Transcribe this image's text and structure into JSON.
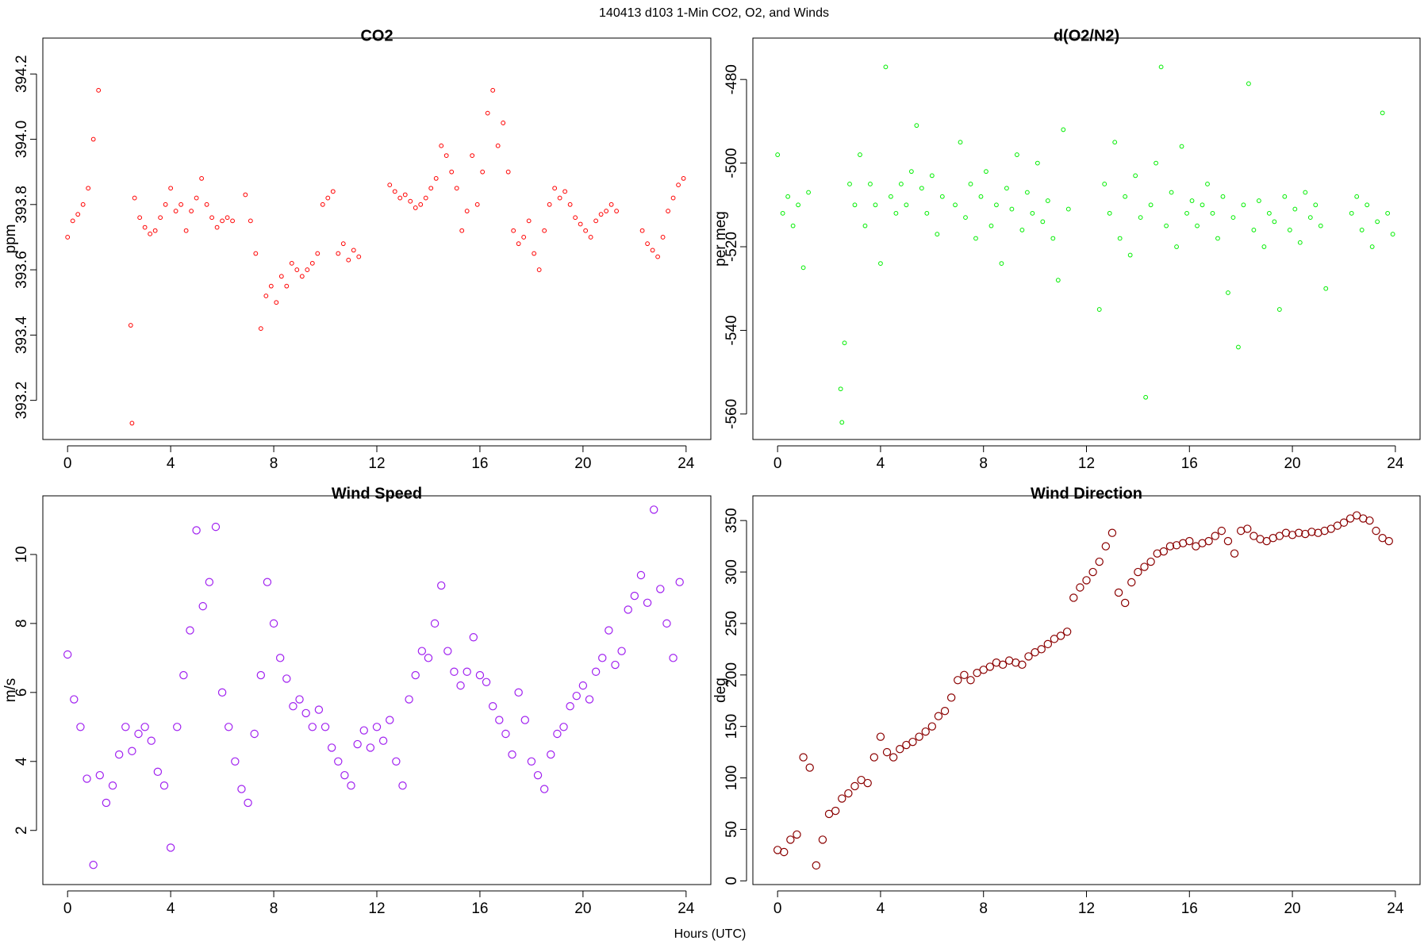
{
  "title": "140413   d103   1-Min CO2, O2, and Winds",
  "xlabel": "Hours (UTC)",
  "chart_data": [
    {
      "type": "scatter",
      "title": "CO2",
      "ylabel": "ppm",
      "color": "#ff0000",
      "xlim": [
        -0.96,
        24.96
      ],
      "xticks": [
        0,
        4,
        8,
        12,
        16,
        20,
        24
      ],
      "ylim": [
        393.08,
        394.31
      ],
      "yticks": [
        393.2,
        393.4,
        393.6,
        393.8,
        {
          "value": 394,
          "label": "394.0"
        },
        394.2
      ],
      "x": [
        0,
        0.2,
        0.4,
        0.6,
        0.8,
        1.0,
        1.2,
        2.45,
        2.5,
        2.6,
        2.8,
        3.0,
        3.2,
        3.4,
        3.6,
        3.8,
        4.0,
        4.2,
        4.4,
        4.6,
        4.8,
        5.0,
        5.2,
        5.4,
        5.6,
        5.8,
        6.0,
        6.2,
        6.4,
        6.9,
        7.1,
        7.3,
        7.5,
        7.7,
        7.9,
        8.1,
        8.3,
        8.5,
        8.7,
        8.9,
        9.1,
        9.3,
        9.5,
        9.7,
        9.9,
        10.1,
        10.3,
        10.5,
        10.7,
        10.9,
        11.1,
        11.3,
        12.5,
        12.7,
        12.9,
        13.1,
        13.3,
        13.5,
        13.7,
        13.9,
        14.1,
        14.3,
        14.5,
        14.7,
        14.9,
        15.1,
        15.3,
        15.5,
        15.7,
        15.9,
        16.1,
        16.3,
        16.5,
        16.7,
        16.9,
        17.1,
        17.3,
        17.5,
        17.7,
        17.9,
        18.1,
        18.3,
        18.5,
        18.7,
        18.9,
        19.1,
        19.3,
        19.5,
        19.7,
        19.9,
        20.1,
        20.3,
        20.5,
        20.7,
        20.9,
        21.1,
        21.3,
        22.3,
        22.5,
        22.7,
        22.9,
        23.1,
        23.3,
        23.5,
        23.7,
        23.9
      ],
      "values": [
        393.7,
        393.75,
        393.77,
        393.8,
        393.85,
        394.0,
        394.15,
        393.43,
        393.13,
        393.82,
        393.76,
        393.73,
        393.71,
        393.72,
        393.76,
        393.8,
        393.85,
        393.78,
        393.8,
        393.72,
        393.78,
        393.82,
        393.88,
        393.8,
        393.76,
        393.73,
        393.75,
        393.76,
        393.75,
        393.83,
        393.75,
        393.65,
        393.42,
        393.52,
        393.55,
        393.5,
        393.58,
        393.55,
        393.62,
        393.6,
        393.58,
        393.6,
        393.62,
        393.65,
        393.8,
        393.82,
        393.84,
        393.65,
        393.68,
        393.63,
        393.66,
        393.64,
        393.86,
        393.84,
        393.82,
        393.83,
        393.81,
        393.79,
        393.8,
        393.82,
        393.85,
        393.88,
        393.98,
        393.95,
        393.9,
        393.85,
        393.72,
        393.78,
        393.95,
        393.8,
        393.9,
        394.08,
        394.15,
        393.98,
        394.05,
        393.9,
        393.72,
        393.68,
        393.7,
        393.75,
        393.65,
        393.6,
        393.72,
        393.8,
        393.85,
        393.82,
        393.84,
        393.8,
        393.76,
        393.74,
        393.72,
        393.7,
        393.75,
        393.77,
        393.78,
        393.8,
        393.78,
        393.72,
        393.68,
        393.66,
        393.64,
        393.7,
        393.78,
        393.82,
        393.86,
        393.88
      ]
    },
    {
      "type": "scatter",
      "title": "d(O2/N2)",
      "ylabel": "per meg",
      "color": "#00ee00",
      "xlim": [
        -0.96,
        24.96
      ],
      "xticks": [
        0,
        4,
        8,
        12,
        16,
        20,
        24
      ],
      "ylim": [
        -566.1,
        -470.1
      ],
      "yticks": [
        -560,
        -540,
        -520,
        -500,
        -480
      ],
      "x": [
        0,
        0.2,
        0.4,
        0.6,
        0.8,
        1.0,
        1.2,
        2.45,
        2.5,
        2.6,
        2.8,
        3.0,
        3.2,
        3.4,
        3.6,
        3.8,
        4.0,
        4.2,
        4.4,
        4.6,
        4.8,
        5.0,
        5.2,
        5.4,
        5.6,
        5.8,
        6.0,
        6.2,
        6.4,
        6.9,
        7.1,
        7.3,
        7.5,
        7.7,
        7.9,
        8.1,
        8.3,
        8.5,
        8.7,
        8.9,
        9.1,
        9.3,
        9.5,
        9.7,
        9.9,
        10.1,
        10.3,
        10.5,
        10.7,
        10.9,
        11.1,
        11.3,
        12.5,
        12.7,
        12.9,
        13.1,
        13.3,
        13.5,
        13.7,
        13.9,
        14.1,
        14.3,
        14.5,
        14.7,
        14.9,
        15.1,
        15.3,
        15.5,
        15.7,
        15.9,
        16.1,
        16.3,
        16.5,
        16.7,
        16.9,
        17.1,
        17.3,
        17.5,
        17.7,
        17.9,
        18.1,
        18.3,
        18.5,
        18.7,
        18.9,
        19.1,
        19.3,
        19.5,
        19.7,
        19.9,
        20.1,
        20.3,
        20.5,
        20.7,
        20.9,
        21.1,
        21.3,
        22.3,
        22.5,
        22.7,
        22.9,
        23.1,
        23.3,
        23.5,
        23.7,
        23.9
      ],
      "values": [
        -498,
        -512,
        -508,
        -515,
        -510,
        -525,
        -507,
        -554,
        -562,
        -543,
        -505,
        -510,
        -498,
        -515,
        -505,
        -510,
        -524,
        -477,
        -508,
        -512,
        -505,
        -510,
        -502,
        -491,
        -506,
        -512,
        -503,
        -517,
        -508,
        -510,
        -495,
        -513,
        -505,
        -518,
        -508,
        -502,
        -515,
        -510,
        -524,
        -506,
        -511,
        -498,
        -516,
        -507,
        -512,
        -500,
        -514,
        -509,
        -518,
        -528,
        -492,
        -511,
        -535,
        -505,
        -512,
        -495,
        -518,
        -508,
        -522,
        -503,
        -513,
        -556,
        -510,
        -500,
        -477,
        -515,
        -507,
        -520,
        -496,
        -512,
        -509,
        -515,
        -510,
        -505,
        -512,
        -518,
        -508,
        -531,
        -513,
        -544,
        -510,
        -481,
        -516,
        -509,
        -520,
        -512,
        -514,
        -535,
        -508,
        -516,
        -511,
        -519,
        -507,
        -513,
        -510,
        -515,
        -530,
        -512,
        -508,
        -516,
        -510,
        -520,
        -514,
        -488,
        -512,
        -517
      ]
    },
    {
      "type": "scatter",
      "title": "Wind Speed",
      "ylabel": "m/s",
      "color": "#a020f0",
      "xlim": [
        -0.96,
        24.96
      ],
      "xticks": [
        0,
        4,
        8,
        12,
        16,
        20,
        24
      ],
      "ylim": [
        0.43,
        11.7
      ],
      "yticks": [
        2,
        4,
        6,
        8,
        10
      ],
      "x": [
        0,
        0.25,
        0.5,
        0.75,
        1,
        1.25,
        1.5,
        1.75,
        2,
        2.25,
        2.5,
        2.75,
        3,
        3.25,
        3.5,
        3.75,
        4,
        4.25,
        4.5,
        4.75,
        5,
        5.25,
        5.5,
        5.75,
        6,
        6.25,
        6.5,
        6.75,
        7,
        7.25,
        7.5,
        7.75,
        8,
        8.25,
        8.5,
        8.75,
        9,
        9.25,
        9.5,
        9.75,
        10,
        10.25,
        10.5,
        10.75,
        11,
        11.25,
        11.5,
        11.75,
        12,
        12.25,
        12.5,
        12.75,
        13,
        13.25,
        13.5,
        13.75,
        14,
        14.25,
        14.5,
        14.75,
        15,
        15.25,
        15.5,
        15.75,
        16,
        16.25,
        16.5,
        16.75,
        17,
        17.25,
        17.5,
        17.75,
        18,
        18.25,
        18.5,
        18.75,
        19,
        19.25,
        19.5,
        19.75,
        20,
        20.25,
        20.5,
        20.75,
        21,
        21.25,
        21.5,
        21.75,
        22,
        22.25,
        22.5,
        22.75,
        23,
        23.25,
        23.5,
        23.75
      ],
      "values": [
        7.1,
        5.8,
        5.0,
        3.5,
        1.0,
        3.6,
        2.8,
        3.3,
        4.2,
        5.0,
        4.3,
        4.8,
        5.0,
        4.6,
        3.7,
        3.3,
        1.5,
        5.0,
        6.5,
        7.8,
        10.7,
        8.5,
        9.2,
        10.8,
        6.0,
        5.0,
        4.0,
        3.2,
        2.8,
        4.8,
        6.5,
        9.2,
        8.0,
        7.0,
        6.4,
        5.6,
        5.8,
        5.4,
        5.0,
        5.5,
        5.0,
        4.4,
        4.0,
        3.6,
        3.3,
        4.5,
        4.9,
        4.4,
        5.0,
        4.6,
        5.2,
        4.0,
        3.3,
        5.8,
        6.5,
        7.2,
        7.0,
        8.0,
        9.1,
        7.2,
        6.6,
        6.2,
        6.6,
        7.6,
        6.5,
        6.3,
        5.6,
        5.2,
        4.8,
        4.2,
        6.0,
        5.2,
        4.0,
        3.6,
        3.2,
        4.2,
        4.8,
        5.0,
        5.6,
        5.9,
        6.2,
        5.8,
        6.6,
        7.0,
        7.8,
        6.8,
        7.2,
        8.4,
        8.8,
        9.4,
        8.6,
        11.3,
        9.0,
        8.0,
        7.0,
        9.2
      ]
    },
    {
      "type": "scatter",
      "title": "Wind Direction",
      "ylabel": "deg",
      "color": "#8b0000",
      "xlim": [
        -0.96,
        24.96
      ],
      "xticks": [
        0,
        4,
        8,
        12,
        16,
        20,
        24
      ],
      "ylim": [
        -3.6,
        374
      ],
      "yticks": [
        0,
        50,
        100,
        150,
        200,
        250,
        300,
        350
      ],
      "x": [
        0,
        0.25,
        0.5,
        0.75,
        1,
        1.25,
        1.5,
        1.75,
        2,
        2.25,
        2.5,
        2.75,
        3,
        3.25,
        3.5,
        3.75,
        4,
        4.25,
        4.5,
        4.75,
        5,
        5.25,
        5.5,
        5.75,
        6,
        6.25,
        6.5,
        6.75,
        7,
        7.25,
        7.5,
        7.75,
        8,
        8.25,
        8.5,
        8.75,
        9,
        9.25,
        9.5,
        9.75,
        10,
        10.25,
        10.5,
        10.75,
        11,
        11.25,
        11.5,
        11.75,
        12,
        12.25,
        12.5,
        12.75,
        13,
        13.25,
        13.5,
        13.75,
        14,
        14.25,
        14.5,
        14.75,
        15,
        15.25,
        15.5,
        15.75,
        16,
        16.25,
        16.5,
        16.75,
        17,
        17.25,
        17.5,
        17.75,
        18,
        18.25,
        18.5,
        18.75,
        19,
        19.25,
        19.5,
        19.75,
        20,
        20.25,
        20.5,
        20.75,
        21,
        21.25,
        21.5,
        21.75,
        22,
        22.25,
        22.5,
        22.75,
        23,
        23.25,
        23.5,
        23.75
      ],
      "values": [
        30,
        28,
        40,
        45,
        120,
        110,
        15,
        40,
        65,
        68,
        80,
        85,
        92,
        98,
        95,
        120,
        140,
        125,
        120,
        128,
        132,
        135,
        140,
        145,
        150,
        160,
        165,
        178,
        195,
        200,
        195,
        202,
        205,
        208,
        212,
        210,
        214,
        212,
        210,
        218,
        222,
        225,
        230,
        235,
        238,
        242,
        275,
        285,
        292,
        300,
        310,
        325,
        338,
        280,
        270,
        290,
        300,
        305,
        310,
        318,
        320,
        325,
        326,
        328,
        330,
        325,
        328,
        330,
        335,
        340,
        330,
        318,
        340,
        342,
        335,
        332,
        330,
        333,
        335,
        338,
        336,
        338,
        337,
        339,
        338,
        340,
        342,
        345,
        348,
        352,
        355,
        352,
        350,
        340,
        333,
        330
      ]
    }
  ]
}
